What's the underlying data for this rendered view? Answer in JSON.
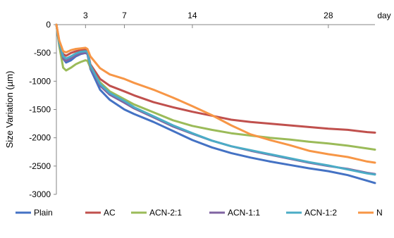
{
  "chart_data": {
    "type": "line",
    "title": "",
    "xlabel": "",
    "ylabel": "Size Variation (µm)",
    "x_unit_label": "day",
    "xlim": [
      0,
      32.8
    ],
    "ylim": [
      -3000,
      0
    ],
    "x_ticks": [
      3,
      7,
      14,
      28
    ],
    "y_ticks": [
      0,
      -500,
      -1000,
      -1500,
      -2000,
      -2500,
      -3000
    ],
    "grid": false,
    "legend_position": "bottom",
    "series": [
      {
        "name": "Plain",
        "color": "#4472C4",
        "x": [
          0,
          0.3,
          0.7,
          1.0,
          1.5,
          2.0,
          2.5,
          3.0,
          3.2,
          3.5,
          4.5,
          5.5,
          7,
          8,
          10,
          12,
          14,
          16,
          18,
          20,
          22,
          24,
          26,
          28,
          30,
          32,
          32.8
        ],
        "y": [
          0,
          -350,
          -600,
          -670,
          -630,
          -560,
          -520,
          -500,
          -520,
          -780,
          -1150,
          -1330,
          -1500,
          -1580,
          -1720,
          -1880,
          -2040,
          -2170,
          -2270,
          -2350,
          -2420,
          -2480,
          -2540,
          -2590,
          -2660,
          -2760,
          -2800
        ]
      },
      {
        "name": "AC",
        "color": "#C0504D",
        "x": [
          0,
          0.3,
          0.7,
          1.0,
          1.5,
          2.0,
          2.5,
          3.0,
          3.2,
          3.5,
          4.5,
          5.5,
          7,
          8,
          10,
          12,
          14,
          16,
          18,
          20,
          22,
          24,
          26,
          28,
          30,
          32,
          32.8
        ],
        "y": [
          0,
          -300,
          -520,
          -550,
          -500,
          -470,
          -450,
          -440,
          -450,
          -700,
          -960,
          -1080,
          -1180,
          -1250,
          -1370,
          -1460,
          -1540,
          -1610,
          -1680,
          -1720,
          -1750,
          -1780,
          -1810,
          -1840,
          -1860,
          -1900,
          -1910
        ]
      },
      {
        "name": "ACN-2:1",
        "color": "#9BBB59",
        "x": [
          0,
          0.3,
          0.7,
          1.0,
          1.5,
          2.0,
          2.5,
          3.0,
          3.2,
          3.5,
          4.5,
          5.5,
          7,
          8,
          10,
          12,
          14,
          16,
          18,
          20,
          22,
          24,
          26,
          28,
          30,
          32,
          32.8
        ],
        "y": [
          0,
          -380,
          -760,
          -810,
          -760,
          -700,
          -660,
          -630,
          -640,
          -760,
          -1020,
          -1180,
          -1320,
          -1410,
          -1550,
          -1690,
          -1790,
          -1860,
          -1920,
          -1960,
          -2000,
          -2030,
          -2070,
          -2100,
          -2140,
          -2190,
          -2210
        ]
      },
      {
        "name": "ACN-1:1",
        "color": "#8064A2",
        "x": [
          0,
          0.3,
          0.7,
          1.0,
          1.5,
          2.0,
          2.5,
          3.0,
          3.2,
          3.5,
          4.5,
          5.5,
          7,
          8,
          10,
          12,
          14,
          16,
          18,
          20,
          22,
          24,
          26,
          28,
          30,
          32,
          32.8
        ],
        "y": [
          0,
          -330,
          -600,
          -640,
          -590,
          -540,
          -510,
          -500,
          -510,
          -740,
          -1080,
          -1240,
          -1380,
          -1480,
          -1640,
          -1800,
          -1930,
          -2050,
          -2150,
          -2230,
          -2300,
          -2370,
          -2440,
          -2500,
          -2550,
          -2620,
          -2640
        ]
      },
      {
        "name": "ACN-1:2",
        "color": "#4BACC6",
        "x": [
          0,
          0.3,
          0.7,
          1.0,
          1.5,
          2.0,
          2.5,
          3.0,
          3.2,
          3.5,
          4.5,
          5.5,
          7,
          8,
          10,
          12,
          14,
          16,
          18,
          20,
          22,
          24,
          26,
          28,
          30,
          32,
          32.8
        ],
        "y": [
          0,
          -320,
          -560,
          -600,
          -560,
          -510,
          -480,
          -470,
          -480,
          -720,
          -1050,
          -1210,
          -1350,
          -1460,
          -1620,
          -1780,
          -1920,
          -2050,
          -2150,
          -2220,
          -2290,
          -2360,
          -2430,
          -2490,
          -2560,
          -2630,
          -2650
        ]
      },
      {
        "name": "N",
        "color": "#F79646",
        "x": [
          0,
          0.3,
          0.7,
          1.0,
          1.5,
          2.0,
          2.5,
          3.0,
          3.2,
          3.5,
          4.5,
          5.5,
          7,
          8,
          10,
          12,
          14,
          16,
          18,
          20,
          22,
          24,
          26,
          28,
          30,
          32,
          32.8
        ],
        "y": [
          0,
          -280,
          -470,
          -490,
          -450,
          -430,
          -420,
          -410,
          -430,
          -560,
          -770,
          -880,
          -960,
          -1030,
          -1150,
          -1290,
          -1440,
          -1600,
          -1780,
          -1940,
          -2040,
          -2130,
          -2230,
          -2290,
          -2340,
          -2420,
          -2440
        ]
      }
    ]
  }
}
